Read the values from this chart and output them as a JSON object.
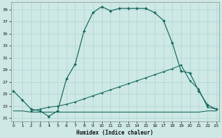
{
  "xlabel": "Humidex (Indice chaleur)",
  "x_ticks": [
    0,
    1,
    2,
    3,
    4,
    5,
    6,
    7,
    8,
    9,
    10,
    11,
    12,
    13,
    14,
    15,
    16,
    17,
    18,
    19,
    20,
    21,
    22,
    23
  ],
  "y_ticks": [
    21,
    23,
    25,
    27,
    29,
    31,
    33,
    35,
    37,
    39
  ],
  "xlim": [
    -0.3,
    23.3
  ],
  "ylim": [
    20.5,
    40.2
  ],
  "bg_color": "#cde8e5",
  "grid_color": "#aed4d0",
  "line_color": "#1a6b60",
  "line1_x": [
    0,
    1,
    2,
    3,
    4,
    5,
    6,
    7,
    8,
    9,
    10,
    11,
    12,
    13,
    14,
    15,
    16,
    17,
    18,
    19,
    20,
    21,
    22,
    23
  ],
  "line1_y": [
    25.5,
    24.0,
    22.5,
    22.2,
    21.3,
    22.2,
    27.5,
    30.0,
    35.5,
    38.5,
    39.5,
    38.8,
    39.2,
    39.2,
    39.2,
    39.2,
    38.5,
    37.2,
    33.5,
    28.8,
    28.5,
    25.5,
    23.2,
    22.5
  ],
  "line2_x": [
    0,
    1,
    2,
    3,
    4,
    5,
    6,
    7,
    8,
    9,
    10,
    11,
    12,
    13,
    14,
    15,
    16,
    17,
    18,
    19,
    20,
    21,
    22,
    23
  ],
  "line2_y": [
    22.2,
    22.2,
    22.0,
    22.0,
    22.0,
    22.0,
    22.0,
    22.0,
    22.0,
    22.0,
    22.0,
    22.0,
    22.0,
    22.0,
    22.0,
    22.0,
    22.0,
    22.0,
    22.0,
    22.0,
    22.0,
    22.0,
    22.2,
    22.2
  ],
  "line3_x": [
    2,
    3,
    4,
    5,
    6,
    7,
    8,
    9,
    10,
    11,
    12,
    13,
    14,
    15,
    16,
    17,
    18,
    19,
    20,
    21,
    22,
    23
  ],
  "line3_y": [
    22.2,
    22.5,
    22.8,
    23.0,
    23.3,
    23.7,
    24.2,
    24.7,
    25.2,
    25.7,
    26.2,
    26.7,
    27.2,
    27.7,
    28.2,
    28.7,
    29.2,
    29.8,
    27.2,
    25.8,
    22.8,
    22.5
  ]
}
